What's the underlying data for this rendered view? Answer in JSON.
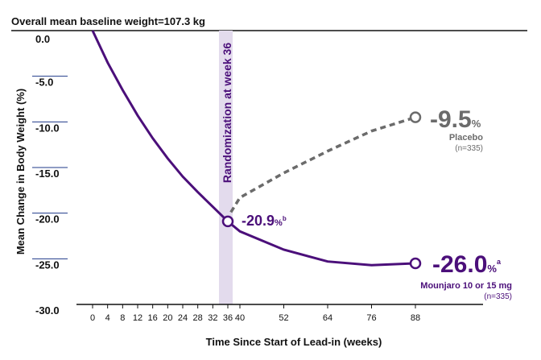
{
  "chart_data": {
    "type": "line",
    "title": "Overall mean baseline weight=107.3 kg",
    "xlabel": "Time Since Start of Lead-in (weeks)",
    "ylabel": "Mean Change in Body Weight (%)",
    "ylim": [
      -30,
      0
    ],
    "x_ticks": [
      "0",
      "4",
      "8",
      "12",
      "16",
      "20",
      "24",
      "28",
      "32",
      "36",
      "40",
      "52",
      "64",
      "76",
      "88"
    ],
    "y_ticks": [
      "0.0",
      "-5.0",
      "-10.0",
      "-15.0",
      "-20.0",
      "-25.0",
      "-30.0"
    ],
    "randomization_label": "Randomization at week 36",
    "series": [
      {
        "name": "Mounjaro 10 or 15 mg",
        "n_label": "(n=335)",
        "color": "#4b0f7a",
        "style": "solid",
        "x": [
          0,
          4,
          8,
          12,
          16,
          20,
          24,
          28,
          32,
          36,
          40,
          52,
          64,
          76,
          88
        ],
        "y": [
          0.0,
          -3.5,
          -6.5,
          -9.3,
          -11.8,
          -14.0,
          -16.0,
          -17.7,
          -19.3,
          -20.9,
          -22.0,
          -24.0,
          -25.3,
          -25.7,
          -25.5
        ],
        "end_value": "-26.0",
        "end_suffix": "%",
        "end_footnote": "a",
        "mid_value": "-20.9",
        "mid_suffix": "%",
        "mid_footnote": "b"
      },
      {
        "name": "Placebo",
        "n_label": "(n=335)",
        "color": "#6b6b6b",
        "style": "dashed",
        "x": [
          36,
          40,
          52,
          64,
          76,
          88
        ],
        "y": [
          -20.9,
          -18.3,
          -15.6,
          -13.2,
          -11.0,
          -9.5
        ],
        "end_value": "-9.5",
        "end_suffix": "%"
      }
    ]
  }
}
